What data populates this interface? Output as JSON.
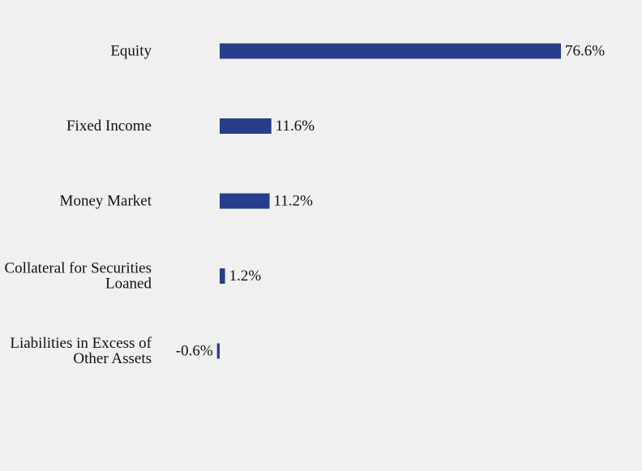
{
  "colors": {
    "background": "#f0f0f0",
    "bar": "#273f8b",
    "text": "#111111"
  },
  "chart_data": {
    "type": "bar",
    "orientation": "horizontal",
    "title": "",
    "xlabel": "",
    "ylabel": "",
    "grid": false,
    "xlim": [
      -0.6,
      76.6
    ],
    "categories": [
      [
        "Equity"
      ],
      [
        "Fixed Income"
      ],
      [
        "Money Market"
      ],
      [
        "Collateral for Securities",
        "Loaned"
      ],
      [
        "Liabilities in Excess of",
        "Other Assets"
      ]
    ],
    "values": [
      76.6,
      11.6,
      11.2,
      1.2,
      -0.6
    ],
    "data_labels": [
      "76.6%",
      "11.6%",
      "11.2%",
      "1.2%",
      "-0.6%"
    ]
  }
}
